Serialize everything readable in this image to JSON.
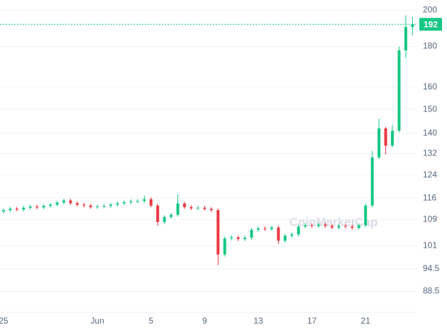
{
  "chart_data": {
    "type": "candlestick",
    "x": [
      0,
      0.5,
      1,
      1.5,
      2,
      2.5,
      3,
      3.5,
      4,
      4.5,
      5,
      5.5,
      6,
      6.5,
      7,
      7.5,
      8,
      8.5,
      9,
      9.5,
      10,
      10.5,
      11,
      11.5,
      12,
      12.5,
      13,
      13.5,
      14,
      14.5,
      15,
      15.5,
      16,
      16.5,
      17,
      17.5,
      18,
      18.5,
      19,
      19.5,
      20,
      20.5,
      21,
      21.5,
      22,
      22.5,
      23,
      23.5,
      24,
      24.5,
      25,
      25.5,
      26,
      26.5,
      27,
      27.5,
      28,
      28.5,
      29,
      29.5,
      30,
      30.5
    ],
    "open": [
      111.6,
      112.0,
      112.5,
      112.2,
      112.8,
      113.2,
      112.9,
      113.4,
      113.8,
      114.5,
      115.2,
      114.3,
      113.8,
      113.5,
      113.0,
      113.2,
      113.4,
      113.8,
      114.2,
      114.6,
      114.9,
      115.0,
      115.6,
      113.5,
      108.2,
      109.8,
      110.5,
      114.2,
      113.0,
      112.6,
      112.8,
      112.4,
      112.0,
      98.5,
      103.2,
      103.5,
      103.0,
      103.4,
      105.8,
      106.2,
      106.0,
      106.5,
      102.5,
      104.0,
      104.4,
      106.8,
      107.2,
      107.0,
      107.4,
      107.0,
      106.5,
      107.0,
      106.8,
      106.4,
      107.2,
      113.5,
      130.5,
      142.0,
      135.0,
      141.0,
      178.0,
      190.5
    ],
    "high": [
      112.6,
      113.1,
      113.1,
      113.4,
      113.8,
      113.8,
      114.0,
      114.4,
      115.1,
      115.8,
      115.8,
      114.9,
      114.4,
      114.1,
      113.8,
      114.0,
      114.4,
      114.8,
      115.2,
      115.5,
      115.6,
      116.8,
      116.2,
      114.1,
      110.4,
      111.1,
      117.2,
      114.8,
      113.6,
      113.4,
      113.4,
      113.0,
      112.6,
      103.8,
      104.1,
      104.1,
      104.0,
      106.4,
      106.8,
      106.8,
      107.1,
      107.1,
      104.6,
      105.0,
      107.4,
      107.8,
      107.8,
      108.0,
      108.0,
      107.6,
      107.6,
      107.6,
      107.4,
      107.8,
      114.1,
      133.0,
      146.0,
      142.6,
      143.5,
      180.0,
      197.0,
      196.0
    ],
    "low": [
      111.0,
      111.4,
      111.6,
      111.6,
      112.2,
      112.3,
      112.3,
      112.8,
      113.2,
      113.9,
      113.7,
      113.2,
      112.9,
      112.4,
      112.4,
      112.6,
      112.8,
      113.2,
      113.6,
      114.0,
      114.3,
      114.4,
      112.9,
      107.0,
      107.6,
      109.2,
      109.9,
      112.4,
      112.0,
      112.0,
      111.8,
      111.4,
      95.5,
      97.9,
      102.6,
      102.4,
      102.4,
      102.8,
      105.2,
      105.4,
      105.4,
      101.5,
      101.9,
      103.4,
      103.8,
      106.2,
      106.4,
      106.4,
      106.4,
      105.9,
      105.9,
      106.2,
      105.8,
      105.8,
      106.6,
      112.9,
      129.9,
      131.5,
      134.4,
      140.4,
      174.0,
      186.0
    ],
    "close": [
      112.0,
      112.5,
      112.2,
      112.8,
      113.2,
      112.9,
      113.4,
      113.8,
      114.5,
      115.2,
      114.3,
      113.8,
      113.5,
      113.0,
      113.2,
      113.4,
      113.8,
      114.2,
      114.6,
      114.9,
      115.0,
      115.6,
      113.5,
      108.2,
      109.8,
      110.5,
      114.2,
      113.0,
      112.6,
      112.8,
      112.4,
      112.0,
      98.5,
      103.2,
      103.5,
      103.0,
      103.4,
      105.8,
      106.2,
      106.0,
      106.5,
      102.5,
      104.0,
      104.4,
      106.8,
      107.2,
      107.0,
      107.4,
      107.0,
      106.5,
      107.0,
      106.8,
      106.4,
      107.2,
      113.5,
      130.5,
      142.0,
      135.0,
      141.0,
      178.0,
      190.5,
      192.0
    ],
    "up_color": "#16c784",
    "down_color": "#ea3943",
    "current_price": 192,
    "current_price_color": "#16c784",
    "watermark": "CoinMarketCap",
    "log_scale": true,
    "grid": true,
    "xlim": [
      -0.26,
      30.85
    ],
    "ylim": [
      83.3,
      206
    ],
    "xticks": [
      {
        "value": 0,
        "label": "25"
      },
      {
        "value": 7,
        "label": "Jun"
      },
      {
        "value": 11,
        "label": "5"
      },
      {
        "value": 15,
        "label": "9"
      },
      {
        "value": 19,
        "label": "13"
      },
      {
        "value": 23,
        "label": "17"
      },
      {
        "value": 27,
        "label": "21"
      }
    ],
    "yticks": [
      88.5,
      94.5,
      101,
      109,
      116,
      124,
      132,
      140,
      150,
      160,
      180,
      200
    ]
  }
}
